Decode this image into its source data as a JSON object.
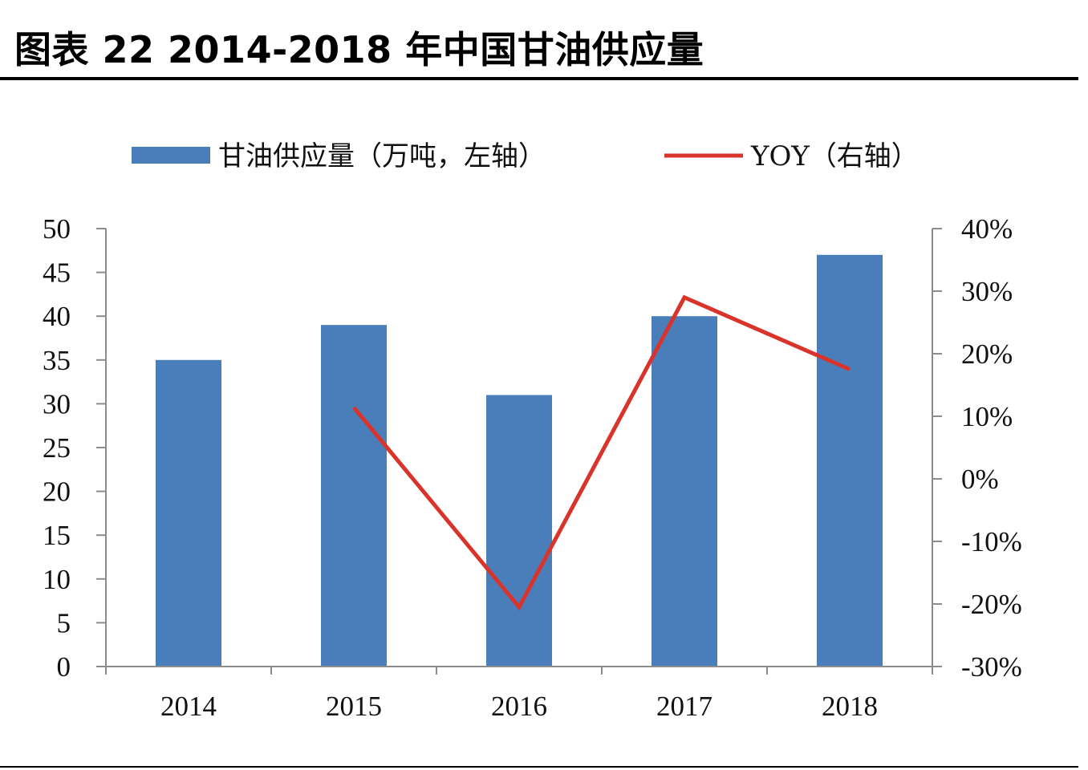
{
  "title": "图表 22 2014-2018 年中国甘油供应量",
  "chart_data": {
    "type": "bar",
    "categories": [
      "2014",
      "2015",
      "2016",
      "2017",
      "2018"
    ],
    "series": [
      {
        "name": "甘油供应量（万吨，左轴）",
        "type": "bar",
        "axis": "left",
        "color": "#4a7ebb",
        "values": [
          35,
          39,
          31,
          40,
          47
        ]
      },
      {
        "name": "YOY（右轴）",
        "type": "line",
        "axis": "right",
        "color": "#d9342b",
        "values": [
          null,
          11.4,
          -20.5,
          29.0,
          17.5
        ]
      }
    ],
    "y_left": {
      "ylim": [
        0,
        50
      ],
      "ticks": [
        "0",
        "5",
        "10",
        "15",
        "20",
        "25",
        "30",
        "35",
        "40",
        "45",
        "50"
      ]
    },
    "y_right": {
      "ylim": [
        -30,
        40
      ],
      "ticks": [
        "-30%",
        "-20%",
        "-10%",
        "0%",
        "10%",
        "20%",
        "30%",
        "40%"
      ]
    },
    "legend": {
      "position": "top"
    },
    "grid": false
  }
}
